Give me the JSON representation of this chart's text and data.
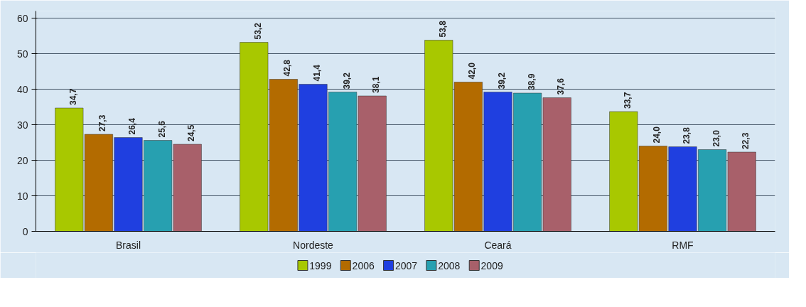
{
  "chart_data": {
    "type": "bar",
    "categories": [
      "Brasil",
      "Nordeste",
      "Ceará",
      "RMF"
    ],
    "series": [
      {
        "name": "1999",
        "color": "#a8c800",
        "values": [
          34.7,
          53.2,
          53.8,
          33.7
        ],
        "value_labels": [
          "34,7",
          "53,2",
          "53,8",
          "33,7"
        ]
      },
      {
        "name": "2006",
        "color": "#b36b00",
        "values": [
          27.3,
          42.8,
          42.0,
          24.0
        ],
        "value_labels": [
          "27,3",
          "42,8",
          "42,0",
          "24,0"
        ]
      },
      {
        "name": "2007",
        "color": "#1f3fe0",
        "values": [
          26.4,
          41.4,
          39.2,
          23.8
        ],
        "value_labels": [
          "26,4",
          "41,4",
          "39,2",
          "23,8"
        ]
      },
      {
        "name": "2008",
        "color": "#27a0b0",
        "values": [
          25.6,
          39.2,
          38.9,
          23.0
        ],
        "value_labels": [
          "25,6",
          "39,2",
          "38,9",
          "23,0"
        ]
      },
      {
        "name": "2009",
        "color": "#a8606a",
        "values": [
          24.5,
          38.1,
          37.6,
          22.3
        ],
        "value_labels": [
          "24,5",
          "38,1",
          "37,6",
          "22,3"
        ]
      }
    ],
    "ylim": [
      0,
      62
    ],
    "yticks": [
      0,
      10,
      20,
      30,
      40,
      50,
      60
    ],
    "grid": "y",
    "legend": "bottom"
  }
}
